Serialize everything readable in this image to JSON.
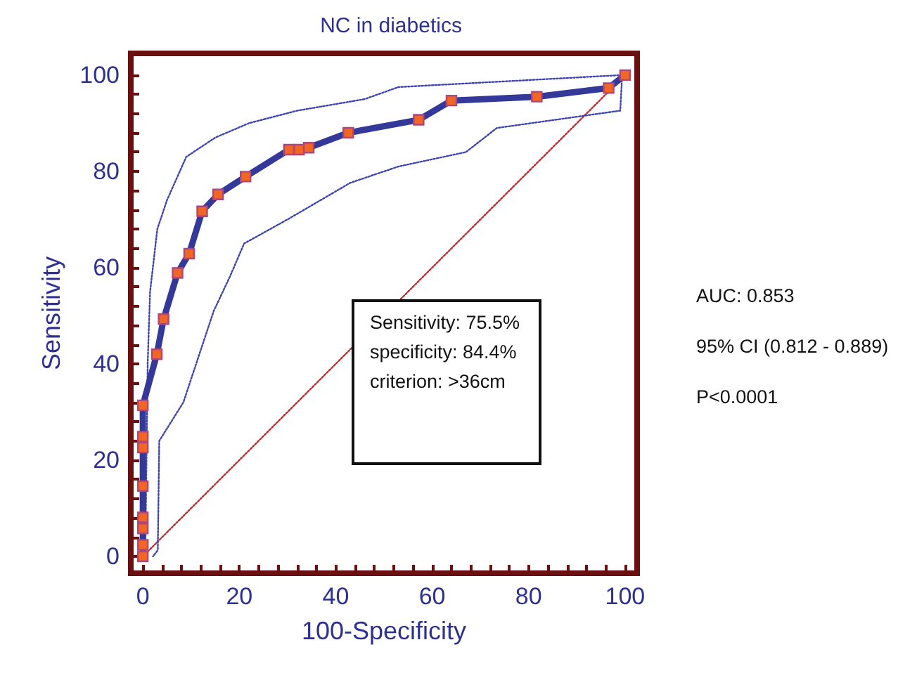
{
  "chart_data": {
    "type": "line",
    "title": "NC in diabetics",
    "xlabel": "100-Specificity",
    "ylabel": "Sensitivity",
    "xlim": [
      -2.5,
      102.5
    ],
    "ylim": [
      -3.5,
      104.5
    ],
    "xticks": [
      0,
      {
        "value": 4,
        "label": null
      },
      {
        "value": 8,
        "label": null
      },
      {
        "value": 12,
        "label": null
      },
      {
        "value": 16,
        "label": null
      },
      20,
      {
        "value": 24,
        "label": null
      },
      {
        "value": 28,
        "label": null
      },
      {
        "value": 32,
        "label": null
      },
      {
        "value": 36,
        "label": null
      },
      40,
      {
        "value": 44,
        "label": null
      },
      {
        "value": 48,
        "label": null
      },
      {
        "value": 52,
        "label": null
      },
      {
        "value": 56,
        "label": null
      },
      60,
      {
        "value": 64,
        "label": null
      },
      {
        "value": 68,
        "label": null
      },
      {
        "value": 72,
        "label": null
      },
      {
        "value": 76,
        "label": null
      },
      80,
      {
        "value": 84,
        "label": null
      },
      {
        "value": 88,
        "label": null
      },
      {
        "value": 92,
        "label": null
      },
      {
        "value": 96,
        "label": null
      },
      100
    ],
    "yticks": [
      0,
      {
        "value": 4,
        "label": null
      },
      {
        "value": 8,
        "label": null
      },
      {
        "value": 12,
        "label": null
      },
      {
        "value": 16,
        "label": null
      },
      20,
      {
        "value": 24,
        "label": null
      },
      {
        "value": 28,
        "label": null
      },
      {
        "value": 32,
        "label": null
      },
      {
        "value": 36,
        "label": null
      },
      40,
      {
        "value": 44,
        "label": null
      },
      {
        "value": 48,
        "label": null
      },
      {
        "value": 52,
        "label": null
      },
      {
        "value": 56,
        "label": null
      },
      60,
      {
        "value": 64,
        "label": null
      },
      {
        "value": 68,
        "label": null
      },
      {
        "value": 72,
        "label": null
      },
      {
        "value": 76,
        "label": null
      },
      80,
      {
        "value": 84,
        "label": null
      },
      {
        "value": 88,
        "label": null
      },
      {
        "value": 92,
        "label": null
      },
      {
        "value": 96,
        "label": null
      },
      100
    ],
    "grid": false,
    "annotations": [
      "Sensitivity: 75.5%",
      "specificity: 84.4%",
      "criterion: >36cm",
      "AUC: 0.853",
      "95% CI (0.812 - 0.889)",
      "P<0.0001"
    ],
    "series": [
      {
        "type": "line",
        "color": "#c0282d",
        "line_style": "dotted",
        "marker": "none",
        "x": [
          0,
          20,
          40,
          60,
          80,
          100
        ],
        "values": [
          0,
          20,
          40,
          60,
          80,
          100
        ]
      },
      {
        "type": "line",
        "color": "#3f45b0",
        "line_style": "dotted",
        "marker": "none",
        "x": [
          0.5,
          1,
          1.5,
          3,
          5,
          9,
          15,
          22,
          32,
          46,
          53,
          99.4,
          99,
          73.4,
          67,
          53,
          43,
          30,
          21,
          18,
          14.7,
          8.4,
          3.4,
          3.1,
          2.1
        ],
        "values": [
          0,
          40,
          55,
          68,
          74,
          83,
          87,
          90,
          92.6,
          95,
          97.5,
          100,
          92.6,
          89,
          84,
          81,
          77.6,
          70,
          65,
          58,
          51,
          32,
          24,
          1.3,
          0
        ]
      },
      {
        "type": "line",
        "color": "#333899",
        "line_style": "solid",
        "marker": "square",
        "x": [
          0,
          0,
          0,
          0,
          0,
          0,
          0,
          0,
          2.9,
          4.3,
          7.2,
          9.6,
          12.3,
          15.6,
          21.3,
          30.3,
          32.4,
          34.4,
          42.6,
          57.2,
          64,
          81.7,
          96.6,
          100
        ],
        "values": [
          0,
          2.4,
          5.8,
          8.1,
          14.6,
          22.6,
          24.9,
          31.4,
          42,
          49.3,
          58.9,
          62.9,
          71.7,
          75.2,
          78.9,
          84.5,
          84.5,
          84.9,
          88,
          90.7,
          94.7,
          95.5,
          97.3,
          100
        ]
      }
    ]
  }
}
